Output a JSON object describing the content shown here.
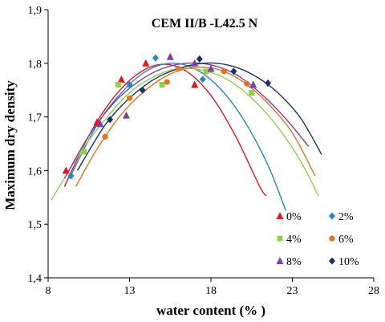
{
  "chart_data": {
    "type": "scatter",
    "title": "CEM II/B -L42.5 N",
    "xlabel": "water content (% )",
    "ylabel": "Maximum dry density",
    "xlim": [
      8,
      28
    ],
    "ylim": [
      1.4,
      1.9
    ],
    "x_ticks": [
      8,
      13,
      18,
      23,
      28
    ],
    "x_tick_labels": [
      "8",
      "13",
      "18",
      "23",
      "28"
    ],
    "y_ticks": [
      1.4,
      1.5,
      1.6,
      1.7,
      1.8,
      1.9
    ],
    "y_tick_labels": [
      "1,4",
      "1,5",
      "1,6",
      "1,7",
      "1,8",
      "1,9"
    ],
    "grid": false,
    "legend_position": "bottom-right",
    "series": [
      {
        "name": "0%",
        "color": "#e8141c",
        "marker": "triangle",
        "points": [
          [
            9.1,
            1.6
          ],
          [
            11.0,
            1.69
          ],
          [
            12.5,
            1.77
          ],
          [
            14.0,
            1.8
          ],
          [
            17.0,
            1.76
          ]
        ],
        "curve": [
          [
            9.0,
            1.57
          ],
          [
            10.5,
            1.665
          ],
          [
            12.0,
            1.735
          ],
          [
            13.5,
            1.78
          ],
          [
            15.0,
            1.798
          ],
          [
            16.5,
            1.785
          ],
          [
            18.0,
            1.74
          ],
          [
            19.5,
            1.665
          ],
          [
            21.0,
            1.57
          ],
          [
            21.4,
            1.553
          ]
        ]
      },
      {
        "name": "2%",
        "color": "#1e88c8",
        "marker": "diamond",
        "points": [
          [
            9.4,
            1.59
          ],
          [
            13.0,
            1.76
          ],
          [
            14.6,
            1.81
          ],
          [
            17.5,
            1.77
          ]
        ],
        "curve": [
          [
            9.3,
            1.585
          ],
          [
            11.0,
            1.685
          ],
          [
            12.5,
            1.745
          ],
          [
            14.0,
            1.785
          ],
          [
            15.5,
            1.8
          ],
          [
            17.0,
            1.79
          ],
          [
            18.5,
            1.755
          ],
          [
            20.0,
            1.695
          ],
          [
            21.5,
            1.61
          ],
          [
            22.6,
            1.525
          ]
        ]
      },
      {
        "name": "4%",
        "color": "#8fd14f",
        "marker": "square",
        "points": [
          [
            10.2,
            1.635
          ],
          [
            12.3,
            1.76
          ],
          [
            15.0,
            1.76
          ],
          [
            17.7,
            1.785
          ],
          [
            20.5,
            1.745
          ]
        ],
        "curve": [
          [
            8.2,
            1.545
          ],
          [
            10.0,
            1.635
          ],
          [
            11.5,
            1.695
          ],
          [
            13.0,
            1.745
          ],
          [
            14.5,
            1.775
          ],
          [
            16.0,
            1.79
          ],
          [
            17.5,
            1.787
          ],
          [
            19.0,
            1.77
          ],
          [
            20.5,
            1.735
          ],
          [
            22.0,
            1.685
          ],
          [
            23.5,
            1.618
          ],
          [
            24.6,
            1.553
          ]
        ]
      },
      {
        "name": "6%",
        "color": "#e6711f",
        "marker": "circle",
        "points": [
          [
            11.5,
            1.663
          ],
          [
            13.0,
            1.735
          ],
          [
            15.3,
            1.765
          ],
          [
            16.0,
            1.79
          ],
          [
            18.8,
            1.785
          ],
          [
            20.2,
            1.762
          ]
        ],
        "curve": [
          [
            9.7,
            1.57
          ],
          [
            11.0,
            1.64
          ],
          [
            12.5,
            1.705
          ],
          [
            14.0,
            1.75
          ],
          [
            15.5,
            1.78
          ],
          [
            17.0,
            1.792
          ],
          [
            18.5,
            1.788
          ],
          [
            20.0,
            1.765
          ],
          [
            21.5,
            1.725
          ],
          [
            23.0,
            1.67
          ],
          [
            24.4,
            1.59
          ]
        ]
      },
      {
        "name": "8%",
        "color": "#7d3fa8",
        "marker": "triangle",
        "points": [
          [
            11.2,
            1.687
          ],
          [
            12.8,
            1.703
          ],
          [
            15.5,
            1.812
          ],
          [
            17.0,
            1.8
          ],
          [
            18.0,
            1.79
          ],
          [
            20.6,
            1.76
          ]
        ],
        "curve": [
          [
            9.0,
            1.585
          ],
          [
            10.5,
            1.665
          ],
          [
            12.0,
            1.725
          ],
          [
            13.5,
            1.765
          ],
          [
            15.0,
            1.79
          ],
          [
            16.5,
            1.8
          ],
          [
            18.0,
            1.797
          ],
          [
            19.5,
            1.78
          ],
          [
            21.0,
            1.745
          ],
          [
            22.5,
            1.7
          ],
          [
            24.0,
            1.645
          ]
        ]
      },
      {
        "name": "10%",
        "color": "#1a2f6b",
        "marker": "diamond",
        "points": [
          [
            11.8,
            1.695
          ],
          [
            13.8,
            1.75
          ],
          [
            17.3,
            1.808
          ],
          [
            19.4,
            1.785
          ],
          [
            21.5,
            1.763
          ]
        ],
        "curve": [
          [
            9.8,
            1.6
          ],
          [
            11.5,
            1.685
          ],
          [
            13.0,
            1.735
          ],
          [
            14.5,
            1.77
          ],
          [
            16.0,
            1.79
          ],
          [
            17.5,
            1.8
          ],
          [
            19.0,
            1.797
          ],
          [
            20.5,
            1.78
          ],
          [
            22.0,
            1.748
          ],
          [
            23.5,
            1.698
          ],
          [
            24.8,
            1.63
          ]
        ]
      }
    ]
  }
}
